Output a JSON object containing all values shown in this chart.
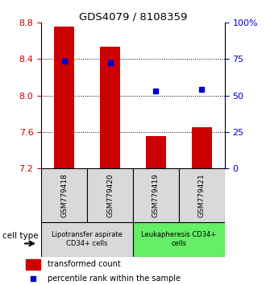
{
  "title": "GDS4079 / 8108359",
  "samples": [
    "GSM779418",
    "GSM779420",
    "GSM779419",
    "GSM779421"
  ],
  "bar_values": [
    8.76,
    8.54,
    7.55,
    7.65
  ],
  "blue_values": [
    8.38,
    8.36,
    8.05,
    8.07
  ],
  "y_min": 7.2,
  "y_max": 8.8,
  "y_ticks_left": [
    7.2,
    7.6,
    8.0,
    8.4,
    8.8
  ],
  "y_ticks_right": [
    0,
    25,
    50,
    75,
    100
  ],
  "bar_color": "#cc0000",
  "blue_color": "#0000cc",
  "cell_types": [
    {
      "label": "Lipotransfer aspirate\nCD34+ cells",
      "color": "#d9d9d9",
      "indices": [
        0,
        1
      ]
    },
    {
      "label": "Leukapheresis CD34+\ncells",
      "color": "#66ee66",
      "indices": [
        2,
        3
      ]
    }
  ],
  "legend_red": "transformed count",
  "legend_blue": "percentile rank within the sample",
  "cell_type_label": "cell type",
  "bg_xlabels": "#d9d9d9"
}
